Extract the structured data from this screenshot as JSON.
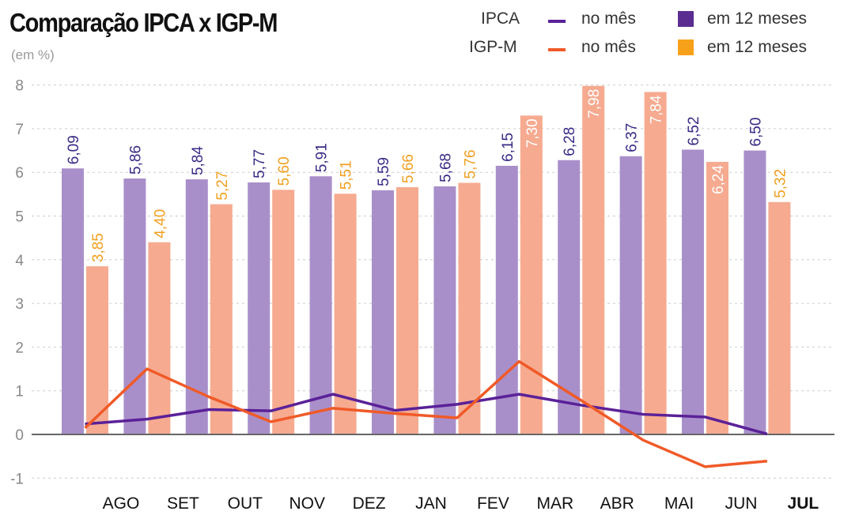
{
  "chart_data": {
    "type": "bar",
    "title": "Comparação IPCA x IGP-M",
    "subtitle": "(em %)",
    "categories": [
      "AGO",
      "SET",
      "OUT",
      "NOV",
      "DEZ",
      "JAN",
      "FEV",
      "MAR",
      "ABR",
      "MAI",
      "JUN",
      "JUL"
    ],
    "highlight_category": "JUL",
    "ylim": [
      -1,
      8
    ],
    "yticks": [
      -1,
      0,
      1,
      2,
      3,
      4,
      5,
      6,
      7,
      8
    ],
    "grid": true,
    "legend_position": "top-right",
    "series": [
      {
        "name": "IPCA em 12 meses",
        "kind": "bar",
        "color": "#a98fca",
        "label_color": "#3b2a86",
        "values": [
          6.09,
          5.86,
          5.84,
          5.77,
          5.91,
          5.59,
          5.68,
          6.15,
          6.28,
          6.37,
          6.52,
          6.5
        ],
        "labels": [
          "6,09",
          "5,86",
          "5,84",
          "5,77",
          "5,91",
          "5,59",
          "5,68",
          "6,15",
          "6,28",
          "6,37",
          "6,52",
          "6,50"
        ]
      },
      {
        "name": "IGP-M em 12 meses",
        "kind": "bar",
        "color": "#f6aa90",
        "label_color": "#f0a020",
        "values": [
          3.85,
          4.4,
          5.27,
          5.6,
          5.51,
          5.66,
          5.76,
          7.3,
          7.98,
          7.84,
          6.24,
          5.32
        ],
        "labels": [
          "3,85",
          "4,40",
          "5,27",
          "5,60",
          "5,51",
          "5,66",
          "5,76",
          "7,30",
          "7,98",
          "7,84",
          "6,24",
          "5,32"
        ]
      },
      {
        "name": "IPCA no mês",
        "kind": "line",
        "color": "#5a2198",
        "values": [
          0.24,
          0.35,
          0.57,
          0.54,
          0.92,
          0.55,
          0.69,
          0.92,
          0.67,
          0.46,
          0.4,
          0.01
        ]
      },
      {
        "name": "IGP-M no mês",
        "kind": "line",
        "color": "#f05a28",
        "values": [
          0.15,
          1.5,
          0.86,
          0.29,
          0.6,
          0.48,
          0.38,
          1.67,
          0.78,
          -0.13,
          -0.74,
          -0.61
        ]
      }
    ]
  },
  "legend": {
    "ipca": "IPCA",
    "igpm": "IGP-M",
    "monthly": "no mês",
    "yearly": "em 12 meses",
    "ipca_line_color": "#5a2198",
    "igpm_line_color": "#f05a28",
    "ipca_square_color": "#5b2d91",
    "igpm_square_color": "#f7a11a"
  }
}
